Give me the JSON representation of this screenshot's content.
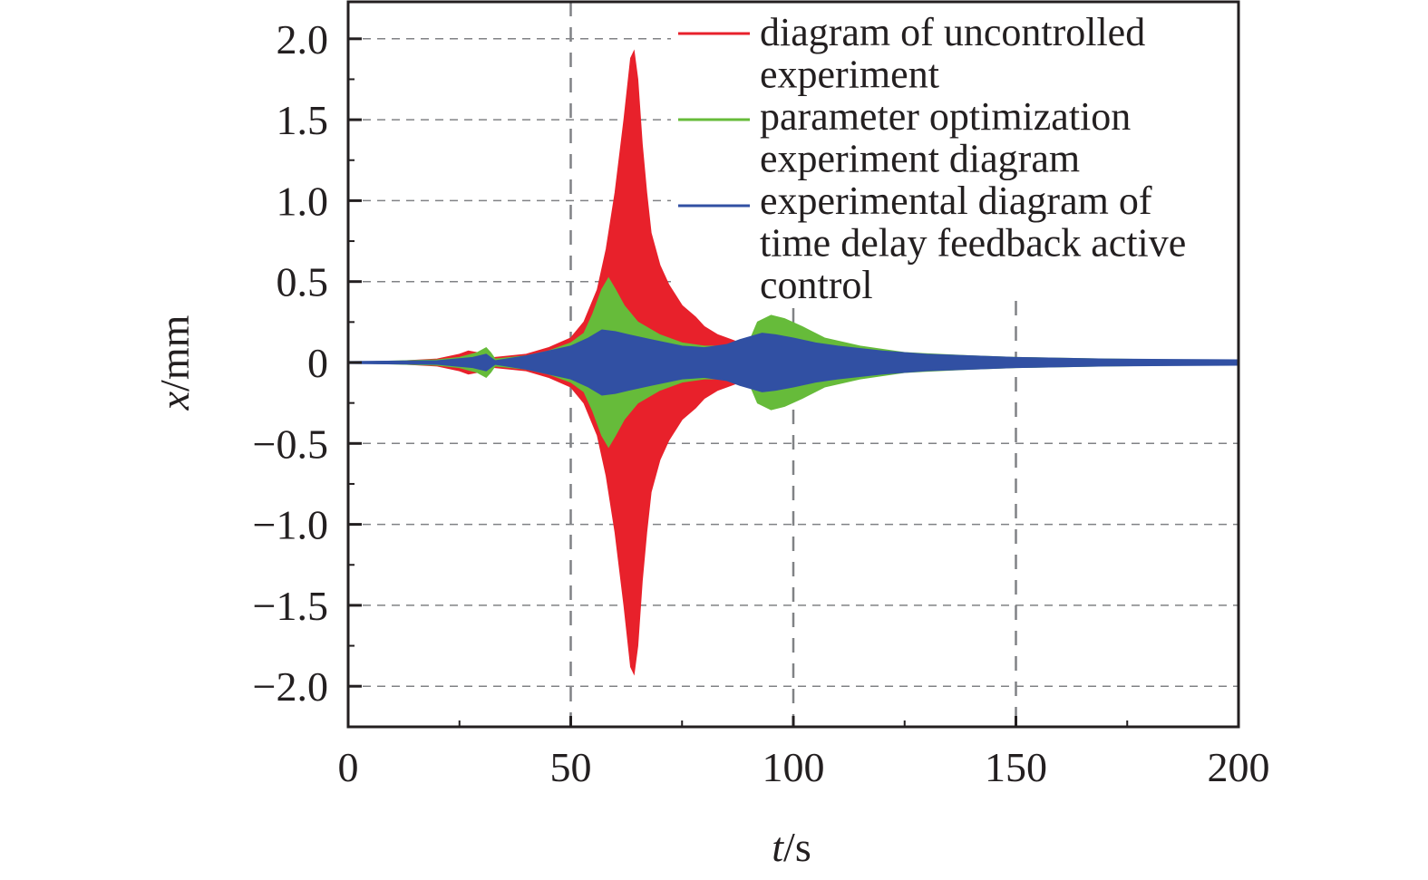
{
  "chart_data": {
    "type": "area",
    "title": "",
    "xlabel": "t/s",
    "xlabel_italic": "t",
    "xlabel_unit": "/s",
    "ylabel": "x/mm",
    "ylabel_italic": "x",
    "ylabel_unit": "/mm",
    "xlim": [
      0,
      200
    ],
    "ylim": [
      -2.24,
      2.24
    ],
    "x_ticks": [
      0,
      50,
      100,
      150,
      200
    ],
    "x_tick_labels": [
      "0",
      "50",
      "100",
      "150",
      "200"
    ],
    "y_ticks": [
      2.0,
      1.5,
      1.0,
      0.5,
      0,
      -0.5,
      -1.0,
      -1.5,
      -2.0
    ],
    "y_tick_labels": [
      "2.0",
      "1.5",
      "1.0",
      "0.5",
      "0",
      "−0.5",
      "−1.0",
      "−1.5",
      "−2.0"
    ],
    "grid": true,
    "legend_position": "upper right",
    "note": "Oscillating signals shown as symmetric amplitude envelopes (± value)",
    "series": [
      {
        "name": "diagram of uncontrolled experiment",
        "color": "#e8212b",
        "envelope": {
          "t": [
            0,
            10,
            20,
            25,
            27,
            29,
            31,
            33,
            40,
            45,
            50,
            53,
            56,
            58,
            60,
            62,
            63.5,
            64.2,
            65,
            66,
            67,
            68,
            70,
            72,
            75,
            78,
            80,
            83,
            86,
            88,
            90
          ],
          "amplitude": [
            0,
            0.005,
            0.02,
            0.05,
            0.07,
            0.06,
            0.02,
            0.03,
            0.05,
            0.09,
            0.15,
            0.25,
            0.45,
            0.7,
            1.05,
            1.5,
            1.88,
            1.92,
            1.75,
            1.35,
            1.05,
            0.8,
            0.6,
            0.48,
            0.35,
            0.28,
            0.22,
            0.17,
            0.14,
            0.12,
            0.1
          ]
        }
      },
      {
        "name": "parameter optimization experiment diagram",
        "color": "#66bb3a",
        "envelope": {
          "t": [
            0,
            20,
            25,
            29,
            31,
            32,
            33,
            40,
            45,
            50,
            53,
            55,
            57,
            58.5,
            60,
            62,
            65,
            70,
            75,
            80,
            85,
            90,
            92,
            95,
            98,
            102,
            107,
            115,
            125,
            140,
            150,
            170,
            200
          ],
          "amplitude": [
            0,
            0.015,
            0.03,
            0.06,
            0.09,
            0.06,
            0.02,
            0.04,
            0.07,
            0.12,
            0.18,
            0.3,
            0.45,
            0.52,
            0.45,
            0.35,
            0.25,
            0.17,
            0.12,
            0.1,
            0.1,
            0.12,
            0.25,
            0.29,
            0.27,
            0.22,
            0.15,
            0.1,
            0.06,
            0.04,
            0.03,
            0.02,
            0.01
          ]
        }
      },
      {
        "name": "experimental diagram of time delay feedback active control",
        "color": "#3150a3",
        "envelope": {
          "t": [
            0,
            20,
            28,
            31,
            33,
            40,
            45,
            50,
            54,
            57,
            60,
            63,
            68,
            75,
            80,
            85,
            88,
            93,
            96,
            100,
            105,
            110,
            120,
            130,
            140,
            150,
            170,
            200
          ],
          "amplitude": [
            0.005,
            0.01,
            0.03,
            0.05,
            0.01,
            0.04,
            0.07,
            0.1,
            0.15,
            0.2,
            0.19,
            0.17,
            0.14,
            0.1,
            0.09,
            0.11,
            0.14,
            0.18,
            0.17,
            0.15,
            0.12,
            0.1,
            0.07,
            0.05,
            0.04,
            0.03,
            0.02,
            0.015
          ]
        }
      }
    ]
  },
  "legend": {
    "items": [
      {
        "lines": [
          "diagram of uncontrolled",
          "experiment"
        ],
        "color": "#e8212b"
      },
      {
        "lines": [
          "parameter optimization",
          "experiment diagram"
        ],
        "color": "#66bb3a"
      },
      {
        "lines": [
          "experimental diagram of",
          "time delay feedback active",
          "control"
        ],
        "color": "#3150a3"
      }
    ]
  },
  "colors": {
    "axis": "#231f20",
    "grid": "#808285"
  }
}
